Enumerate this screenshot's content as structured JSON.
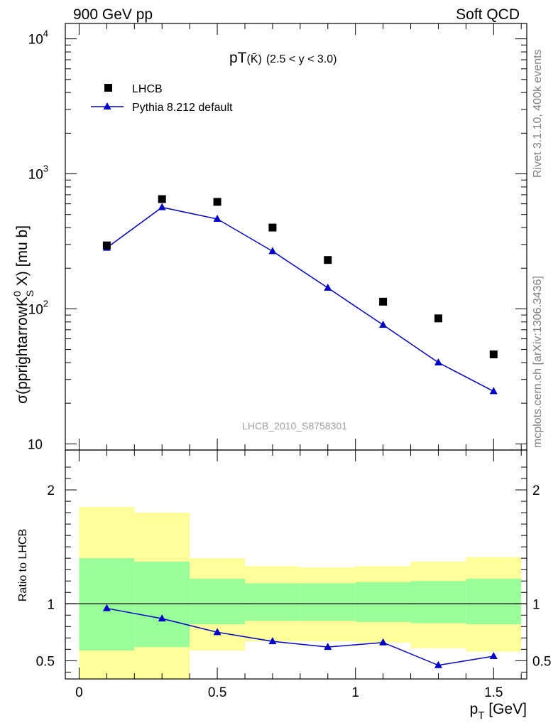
{
  "header": {
    "left": "900 GeV pp",
    "right": "Soft QCD"
  },
  "side_text": {
    "rivet": "Rivet 3.1.10,  400k events",
    "mcplots": "mcplots.cern.ch [arXiv:1306.3436]"
  },
  "colors": {
    "data": "#000000",
    "mc": "#0000cc",
    "band_inner": "#99ff99",
    "band_outer": "#ffff99"
  },
  "chart_data": [
    {
      "type": "scatter",
      "title": "pT(K̄)",
      "title_base": "pT",
      "title_particle": "(K̄)",
      "title_range": "(2.5 < y < 3.0)",
      "ylabel": "σ(pprightarrowK⁰S X) [mu b]",
      "ylabel_main": "σ(pprightarrowK",
      "ylabel_sup": "0",
      "ylabel_sub": "S",
      "ylabel_tail": " X) [mu b]",
      "yscale": "log",
      "ylim": [
        9,
        13000
      ],
      "xlim": [
        -0.05,
        1.62
      ],
      "ytick_labels": [
        "10",
        "10",
        "10",
        "10"
      ],
      "ytick_exponents": [
        "",
        "2",
        "3",
        "4"
      ],
      "ytick_values": [
        10,
        100,
        1000,
        10000
      ],
      "watermark": "LHCB_2010_S8758301",
      "legend": {
        "placement": "top-left",
        "data_label": "LHCB",
        "mc_label": "Pythia 8.212 default"
      },
      "series": [
        {
          "name": "LHCB",
          "x": [
            0.1,
            0.3,
            0.5,
            0.7,
            0.9,
            1.1,
            1.3,
            1.5
          ],
          "y": [
            295,
            650,
            620,
            400,
            230,
            113,
            85,
            46
          ]
        },
        {
          "name": "Pythia 8.212 default",
          "x": [
            0.1,
            0.3,
            0.5,
            0.7,
            0.9,
            1.1,
            1.3,
            1.5
          ],
          "y": [
            283,
            565,
            463,
            267,
            143,
            76,
            40,
            24.5
          ]
        }
      ]
    },
    {
      "type": "line",
      "ylabel": "Ratio to LHCB",
      "xlabel": "p",
      "xlabel_sub": "T",
      "xlabel_tail": " [GeV]",
      "ylim": [
        0.34,
        2.35
      ],
      "xlim": [
        -0.05,
        1.62
      ],
      "xtick_labels": [
        "0",
        "0.5",
        "1",
        "1.5"
      ],
      "xtick_values": [
        0,
        0.5,
        1,
        1.5
      ],
      "ytick_labels": [
        "0.5",
        "1",
        "2"
      ],
      "ytick_values": [
        0.5,
        1,
        2
      ],
      "bins": [
        {
          "lo": 0.0,
          "hi": 0.2,
          "inner": [
            0.59,
            1.4
          ],
          "outer": [
            0.34,
            1.85
          ]
        },
        {
          "lo": 0.2,
          "hi": 0.4,
          "inner": [
            0.62,
            1.37
          ],
          "outer": [
            0.34,
            1.8
          ]
        },
        {
          "lo": 0.4,
          "hi": 0.6,
          "inner": [
            0.82,
            1.22
          ],
          "outer": [
            0.59,
            1.4
          ]
        },
        {
          "lo": 0.6,
          "hi": 0.8,
          "inner": [
            0.85,
            1.18
          ],
          "outer": [
            0.67,
            1.33
          ]
        },
        {
          "lo": 0.8,
          "hi": 1.0,
          "inner": [
            0.85,
            1.18
          ],
          "outer": [
            0.67,
            1.32
          ]
        },
        {
          "lo": 1.0,
          "hi": 1.2,
          "inner": [
            0.84,
            1.19
          ],
          "outer": [
            0.66,
            1.33
          ]
        },
        {
          "lo": 1.2,
          "hi": 1.4,
          "inner": [
            0.83,
            1.2
          ],
          "outer": [
            0.61,
            1.37
          ]
        },
        {
          "lo": 1.4,
          "hi": 1.6,
          "inner": [
            0.82,
            1.22
          ],
          "outer": [
            0.58,
            1.41
          ]
        }
      ],
      "series": [
        {
          "name": "Pythia 8.212 default",
          "x": [
            0.1,
            0.3,
            0.5,
            0.7,
            0.9,
            1.1,
            1.3,
            1.5
          ],
          "y": [
            0.96,
            0.87,
            0.75,
            0.67,
            0.62,
            0.66,
            0.46,
            0.54
          ],
          "yerr": [
            0,
            0,
            0,
            0,
            0,
            0,
            0.015,
            0.02
          ]
        }
      ],
      "reference_line": 1
    }
  ]
}
